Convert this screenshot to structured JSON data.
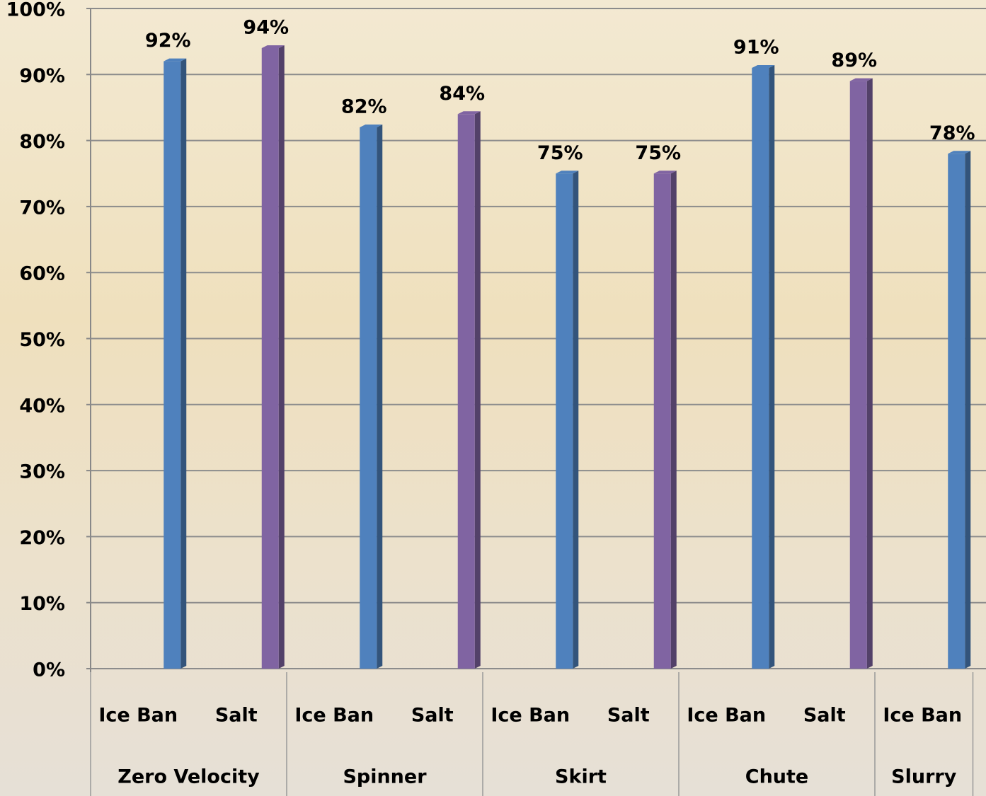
{
  "chart_data": {
    "type": "bar",
    "groups": [
      {
        "name": "Zero Velocity",
        "categories": [
          "Ice Ban",
          "Salt"
        ],
        "values": [
          92,
          94
        ],
        "value_labels": [
          "92%",
          "94%"
        ],
        "colors": [
          "#4f81bd",
          "#8064a2"
        ]
      },
      {
        "name": "Spinner",
        "categories": [
          "Ice Ban",
          "Salt"
        ],
        "values": [
          82,
          84
        ],
        "value_labels": [
          "82%",
          "84%"
        ],
        "colors": [
          "#4f81bd",
          "#8064a2"
        ]
      },
      {
        "name": "Skirt",
        "categories": [
          "Ice Ban",
          "Salt"
        ],
        "values": [
          75,
          75
        ],
        "value_labels": [
          "75%",
          "75%"
        ],
        "colors": [
          "#4f81bd",
          "#8064a2"
        ]
      },
      {
        "name": "Chute",
        "categories": [
          "Ice Ban",
          "Salt"
        ],
        "values": [
          91,
          89
        ],
        "value_labels": [
          "91%",
          "89%"
        ],
        "colors": [
          "#4f81bd",
          "#8064a2"
        ]
      },
      {
        "name": "Slurry",
        "categories": [
          "Ice Ban"
        ],
        "values": [
          78
        ],
        "value_labels": [
          "78%"
        ],
        "colors": [
          "#4f81bd"
        ]
      }
    ],
    "ylim": [
      0,
      100
    ],
    "yticks": [
      {
        "value": 0,
        "label": "0%"
      },
      {
        "value": 10,
        "label": "10%"
      },
      {
        "value": 20,
        "label": "20%"
      },
      {
        "value": 30,
        "label": "30%"
      },
      {
        "value": 40,
        "label": "40%"
      },
      {
        "value": 50,
        "label": "50%"
      },
      {
        "value": 60,
        "label": "60%"
      },
      {
        "value": 70,
        "label": "70%"
      },
      {
        "value": 80,
        "label": "80%"
      },
      {
        "value": 90,
        "label": "90%"
      },
      {
        "value": 100,
        "label": "100%"
      }
    ],
    "grid": true
  }
}
